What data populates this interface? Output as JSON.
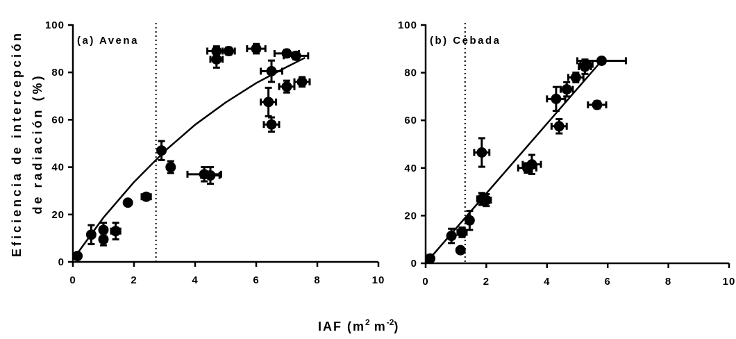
{
  "chart_data": {
    "type": "scatter",
    "xlabel": "IAF (m² m⁻²)",
    "xlabel_parts": {
      "base": "IAF (m",
      "sup1": "2",
      "mid": "m",
      "sup2": "-2",
      "end": ")"
    },
    "ylabel_line1": "Eficiencia de intercepción",
    "ylabel_line2": "de radiación (%)",
    "panels": [
      {
        "label": "(a) Avena",
        "xlim": [
          0,
          10
        ],
        "ylim": [
          0,
          100
        ],
        "xticks": [
          "0",
          "2",
          "4",
          "6",
          "8",
          "10"
        ],
        "yticks": [
          "0",
          "20",
          "40",
          "60",
          "80",
          "100"
        ],
        "vline_x": 2.72,
        "fit_curve": [
          [
            0,
            1
          ],
          [
            1,
            18.7
          ],
          [
            2,
            33.7
          ],
          [
            3,
            46.7
          ],
          [
            4,
            57.9
          ],
          [
            5,
            67.3
          ],
          [
            6,
            75.5
          ],
          [
            7,
            82.3
          ],
          [
            7.6,
            86.2
          ]
        ],
        "points": [
          {
            "x": 0.15,
            "y": 2.5,
            "xerr": 0,
            "yerr": 1
          },
          {
            "x": 0.6,
            "y": 11.5,
            "xerr": 0.1,
            "yerr": 4
          },
          {
            "x": 1.0,
            "y": 13.5,
            "xerr": 0.1,
            "yerr": 3
          },
          {
            "x": 1.0,
            "y": 9.5,
            "xerr": 0.1,
            "yerr": 2.5
          },
          {
            "x": 1.4,
            "y": 13,
            "xerr": 0.15,
            "yerr": 3.5
          },
          {
            "x": 1.8,
            "y": 25,
            "xerr": 0.05,
            "yerr": 1
          },
          {
            "x": 2.4,
            "y": 27.5,
            "xerr": 0.15,
            "yerr": 1
          },
          {
            "x": 2.9,
            "y": 47,
            "xerr": 0.1,
            "yerr": 4
          },
          {
            "x": 3.2,
            "y": 40,
            "xerr": 0.1,
            "yerr": 2.5
          },
          {
            "x": 4.3,
            "y": 37,
            "xerr": 0.55,
            "yerr": 3
          },
          {
            "x": 4.5,
            "y": 36.5,
            "xerr": 0.3,
            "yerr": 3.5
          },
          {
            "x": 4.7,
            "y": 89,
            "xerr": 0.3,
            "yerr": 2
          },
          {
            "x": 4.7,
            "y": 85.5,
            "xerr": 0.2,
            "yerr": 3.5
          },
          {
            "x": 5.1,
            "y": 89,
            "xerr": 0.2,
            "yerr": 1.5
          },
          {
            "x": 6.0,
            "y": 90,
            "xerr": 0.3,
            "yerr": 2
          },
          {
            "x": 6.4,
            "y": 67.5,
            "xerr": 0.25,
            "yerr": 6
          },
          {
            "x": 6.5,
            "y": 80.5,
            "xerr": 0.35,
            "yerr": 4.5
          },
          {
            "x": 6.5,
            "y": 58,
            "xerr": 0.25,
            "yerr": 3
          },
          {
            "x": 7.0,
            "y": 88,
            "xerr": 0.4,
            "yerr": 1.5
          },
          {
            "x": 7.0,
            "y": 74,
            "xerr": 0.25,
            "yerr": 2.5
          },
          {
            "x": 7.3,
            "y": 87,
            "xerr": 0.4,
            "yerr": 1.5
          },
          {
            "x": 7.5,
            "y": 76,
            "xerr": 0.25,
            "yerr": 2
          }
        ]
      },
      {
        "label": "(b) Cebada",
        "xlim": [
          0,
          10
        ],
        "ylim": [
          0,
          100
        ],
        "xticks": [
          "0",
          "2",
          "4",
          "6",
          "8",
          "10"
        ],
        "yticks": [
          "0",
          "20",
          "40",
          "60",
          "80",
          "100"
        ],
        "vline_x": 1.3,
        "fit_curve": [
          [
            0,
            0
          ],
          [
            5.8,
            85
          ],
          [
            6.6,
            85
          ]
        ],
        "points": [
          {
            "x": 0.15,
            "y": 2,
            "xerr": 0,
            "yerr": 1.5
          },
          {
            "x": 0.85,
            "y": 11.5,
            "xerr": 0.1,
            "yerr": 3
          },
          {
            "x": 1.15,
            "y": 5.5,
            "xerr": 0,
            "yerr": 1
          },
          {
            "x": 1.2,
            "y": 13,
            "xerr": 0.15,
            "yerr": 2
          },
          {
            "x": 1.45,
            "y": 18,
            "xerr": 0.1,
            "yerr": 4
          },
          {
            "x": 1.85,
            "y": 27,
            "xerr": 0.15,
            "yerr": 2.5
          },
          {
            "x": 1.85,
            "y": 46.5,
            "xerr": 0.25,
            "yerr": 6
          },
          {
            "x": 2.0,
            "y": 26.5,
            "xerr": 0.15,
            "yerr": 2.5
          },
          {
            "x": 3.35,
            "y": 40,
            "xerr": 0.3,
            "yerr": 2
          },
          {
            "x": 3.5,
            "y": 41.5,
            "xerr": 0.3,
            "yerr": 4
          },
          {
            "x": 4.3,
            "y": 69,
            "xerr": 0.3,
            "yerr": 5
          },
          {
            "x": 4.4,
            "y": 57.5,
            "xerr": 0.25,
            "yerr": 3
          },
          {
            "x": 4.65,
            "y": 73,
            "xerr": 0.2,
            "yerr": 3
          },
          {
            "x": 4.95,
            "y": 78,
            "xerr": 0.25,
            "yerr": 2
          },
          {
            "x": 5.3,
            "y": 83.5,
            "xerr": 0.2,
            "yerr": 1.5
          },
          {
            "x": 5.25,
            "y": 82.5,
            "xerr": 0.2,
            "yerr": 3
          },
          {
            "x": 5.65,
            "y": 66.5,
            "xerr": 0.3,
            "yerr": 1.5
          },
          {
            "x": 5.8,
            "y": 85,
            "xerr": 0.8,
            "yerr": 1
          }
        ]
      }
    ],
    "grid": false,
    "marker_color": "#000000"
  }
}
